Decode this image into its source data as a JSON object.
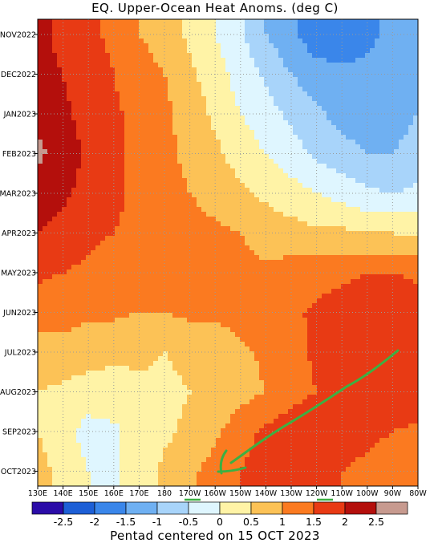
{
  "chart_data": {
    "type": "heatmap",
    "title": "EQ. Upper-Ocean Heat Anoms. (deg C)",
    "caption": "Pentad centered on 15 OCT 2023",
    "y_ticks": [
      "NOV2022",
      "DEC2022",
      "JAN2023",
      "FEB2023",
      "MAR2023",
      "APR2023",
      "MAY2023",
      "JUN2023",
      "JUL2023",
      "AUG2023",
      "SEP2023",
      "OCT2023"
    ],
    "x_ticks": [
      "130E",
      "140E",
      "150E",
      "160E",
      "170E",
      "180",
      "170W",
      "160W",
      "150W",
      "140W",
      "130W",
      "120W",
      "110W",
      "100W",
      "90W",
      "80W"
    ],
    "x_longitudes": [
      130,
      140,
      150,
      160,
      170,
      180,
      190,
      200,
      210,
      220,
      230,
      240,
      250,
      260,
      270,
      280
    ],
    "colorbar": {
      "tick_labels": [
        "-2.5",
        "-2",
        "-1.5",
        "-1",
        "-0.5",
        "0",
        "0.5",
        "1",
        "1.5",
        "2",
        "2.5"
      ],
      "colors": [
        "#2b0ca8",
        "#1d5fd6",
        "#3a86ea",
        "#6fb0f2",
        "#a8d4fa",
        "#dff6ff",
        "#fff3a6",
        "#fcc256",
        "#fb7a20",
        "#e83a14",
        "#b40f0c",
        "#c79a8f"
      ]
    },
    "rows": [
      {
        "label": "NOV2022",
        "anoms": [
          2.2,
          1.8,
          1.6,
          1.4,
          1.0,
          0.8,
          0.4,
          0.0,
          -0.4,
          -1.0,
          -1.4,
          -1.8,
          -1.8,
          -1.6,
          -1.4,
          -1.2
        ]
      },
      {
        "label": "DEC2022",
        "anoms": [
          2.2,
          2.0,
          1.7,
          1.5,
          1.2,
          1.0,
          0.6,
          0.2,
          -0.2,
          -0.6,
          -1.0,
          -1.3,
          -1.4,
          -1.4,
          -1.2,
          -1.0
        ]
      },
      {
        "label": "JAN2023",
        "anoms": [
          2.4,
          2.1,
          1.8,
          1.6,
          1.3,
          1.1,
          0.8,
          0.4,
          0.0,
          -0.3,
          -0.6,
          -0.9,
          -1.2,
          -1.3,
          -1.2,
          -1.0
        ]
      },
      {
        "label": "FEB2023",
        "anoms": [
          2.6,
          2.3,
          1.9,
          1.6,
          1.4,
          1.1,
          0.9,
          0.6,
          0.3,
          0.0,
          -0.3,
          -0.6,
          -0.8,
          -1.0,
          -1.0,
          -0.8
        ]
      },
      {
        "label": "MAR2023",
        "anoms": [
          2.3,
          2.1,
          1.8,
          1.6,
          1.4,
          1.2,
          1.0,
          0.8,
          0.6,
          0.4,
          0.2,
          0.0,
          -0.2,
          -0.4,
          -0.5,
          -0.4
        ]
      },
      {
        "label": "APR2023",
        "anoms": [
          2.0,
          1.8,
          1.6,
          1.5,
          1.4,
          1.3,
          1.2,
          1.1,
          1.0,
          0.8,
          0.7,
          0.6,
          0.6,
          0.5,
          0.5,
          0.4
        ]
      },
      {
        "label": "MAY2023",
        "anoms": [
          1.6,
          1.5,
          1.4,
          1.3,
          1.3,
          1.2,
          1.2,
          1.2,
          1.1,
          1.1,
          1.2,
          1.3,
          1.4,
          1.5,
          1.5,
          1.4
        ]
      },
      {
        "label": "JUN2023",
        "anoms": [
          1.2,
          1.2,
          1.1,
          1.1,
          1.0,
          1.0,
          1.1,
          1.1,
          1.2,
          1.3,
          1.4,
          1.6,
          1.7,
          1.8,
          1.9,
          1.8
        ]
      },
      {
        "label": "JUL2023",
        "anoms": [
          0.8,
          0.8,
          0.7,
          0.6,
          0.6,
          0.5,
          0.6,
          0.7,
          0.9,
          1.1,
          1.3,
          1.6,
          1.8,
          1.9,
          2.0,
          1.9
        ]
      },
      {
        "label": "AUG2023",
        "anoms": [
          0.5,
          0.4,
          0.3,
          0.3,
          0.4,
          0.4,
          0.5,
          0.6,
          0.8,
          1.0,
          1.3,
          1.5,
          1.7,
          1.9,
          1.9,
          1.8
        ]
      },
      {
        "label": "SEP2023",
        "anoms": [
          0.5,
          0.2,
          -0.2,
          -0.1,
          0.2,
          0.4,
          0.6,
          0.9,
          1.3,
          1.6,
          1.8,
          1.9,
          1.7,
          1.6,
          1.5,
          1.4
        ]
      },
      {
        "label": "OCT2023",
        "anoms": [
          0.7,
          0.3,
          0.0,
          -0.1,
          0.3,
          0.6,
          0.9,
          1.2,
          1.5,
          1.7,
          1.9,
          1.7,
          1.5,
          1.4,
          1.3,
          1.2
        ]
      }
    ]
  }
}
